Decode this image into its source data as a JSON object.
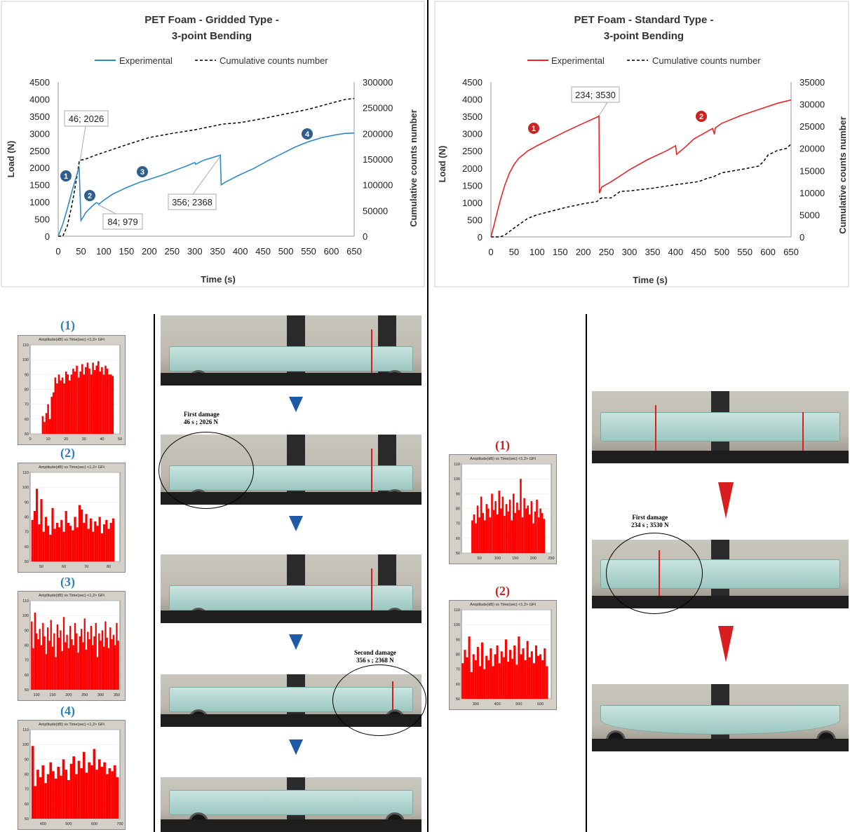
{
  "colors": {
    "gridded": "#2f8ac4",
    "standard": "#e8262a",
    "counts": "#000000",
    "histogram": "#ff0000",
    "marker_blue": "#2e5e8f",
    "marker_red": "#cc2222",
    "arrow_blue": "#1f5aa6",
    "arrow_red": "#d81e1e"
  },
  "left_chart": {
    "title_line1": "PET Foam - Gridded Type -",
    "title_line2": "3-point Bending",
    "legend_experimental": "Experimental",
    "legend_counts": "Cumulative counts number",
    "ylabel": "Load (N)",
    "y2label": "Cumulative counts number",
    "xlabel": "Time (s)",
    "yticks": [
      "0",
      "500",
      "1000",
      "1500",
      "2000",
      "2500",
      "3000",
      "3500",
      "4000",
      "4500"
    ],
    "y2ticks": [
      "0",
      "50000",
      "100000",
      "150000",
      "200000",
      "250000",
      "300000"
    ],
    "xticks": [
      "0",
      "50",
      "100",
      "150",
      "200",
      "250",
      "300",
      "350",
      "400",
      "450",
      "500",
      "550",
      "600",
      "650"
    ],
    "callouts": [
      "46; 2026",
      "84; 979",
      "356; 2368"
    ],
    "markers": [
      "1",
      "2",
      "3",
      "4"
    ]
  },
  "right_chart": {
    "title_line1": "PET Foam - Standard Type -",
    "title_line2": "3-point Bending",
    "legend_experimental": "Experimental",
    "legend_counts": "Cumulative counts number",
    "ylabel": "Load (N)",
    "y2label": "Cumulative counts number",
    "xlabel": "Time (s)",
    "yticks": [
      "0",
      "500",
      "1000",
      "1500",
      "2000",
      "2500",
      "3000",
      "3500",
      "4000",
      "4500"
    ],
    "y2ticks": [
      "0",
      "5000",
      "10000",
      "15000",
      "20000",
      "25000",
      "30000",
      "35000"
    ],
    "xticks": [
      "0",
      "50",
      "100",
      "150",
      "200",
      "250",
      "300",
      "350",
      "400",
      "450",
      "500",
      "550",
      "600",
      "650"
    ],
    "callouts": [
      "234; 3530"
    ],
    "markers": [
      "1",
      "2"
    ]
  },
  "chart_data": [
    {
      "type": "line",
      "title": "PET Foam - Gridded Type - 3-point Bending",
      "xlabel": "Time (s)",
      "ylabel": "Load (N)",
      "y2label": "Cumulative counts number",
      "xlim": [
        0,
        650
      ],
      "ylim": [
        0,
        4500
      ],
      "y2lim": [
        0,
        300000
      ],
      "legend": "top",
      "series": [
        {
          "name": "Experimental",
          "axis": "left",
          "x": [
            0,
            10,
            20,
            30,
            40,
            46,
            48,
            50,
            55,
            60,
            70,
            80,
            84,
            90,
            100,
            120,
            150,
            180,
            200,
            230,
            260,
            280,
            300,
            302,
            320,
            340,
            355,
            356,
            358,
            370,
            400,
            430,
            460,
            490,
            520,
            550,
            580,
            610,
            630,
            650
          ],
          "y": [
            0,
            350,
            800,
            1300,
            1750,
            2026,
            1200,
            460,
            560,
            680,
            820,
            940,
            979,
            940,
            1050,
            1230,
            1420,
            1580,
            1660,
            1790,
            1940,
            2040,
            2150,
            2100,
            2220,
            2300,
            2360,
            2368,
            1500,
            1600,
            1800,
            1980,
            2200,
            2400,
            2600,
            2760,
            2880,
            2960,
            3000,
            3010
          ]
        },
        {
          "name": "Cumulative counts number",
          "axis": "right",
          "style": "dashed",
          "x": [
            0,
            10,
            20,
            30,
            40,
            46,
            50,
            60,
            80,
            100,
            150,
            200,
            250,
            300,
            350,
            360,
            400,
            450,
            500,
            550,
            600,
            630,
            650
          ],
          "y": [
            0,
            0,
            20000,
            60000,
            110000,
            145000,
            148000,
            150000,
            157000,
            163000,
            178000,
            192000,
            200000,
            207000,
            216000,
            218000,
            221000,
            229000,
            238000,
            247000,
            259000,
            266000,
            268000
          ]
        }
      ],
      "annotations": [
        {
          "x": 46,
          "y": 2026,
          "label": "46; 2026"
        },
        {
          "x": 84,
          "y": 979,
          "label": "84; 979"
        },
        {
          "x": 356,
          "y": 2368,
          "label": "356; 2368"
        }
      ]
    },
    {
      "type": "line",
      "title": "PET Foam - Standard Type - 3-point Bending",
      "xlabel": "Time (s)",
      "ylabel": "Load (N)",
      "y2label": "Cumulative counts number",
      "xlim": [
        0,
        650
      ],
      "ylim": [
        0,
        4500
      ],
      "y2lim": [
        0,
        35000
      ],
      "legend": "top",
      "series": [
        {
          "name": "Experimental",
          "axis": "left",
          "x": [
            0,
            5,
            10,
            20,
            30,
            40,
            50,
            60,
            80,
            100,
            130,
            160,
            200,
            233,
            234,
            235,
            240,
            260,
            300,
            340,
            380,
            400,
            402,
            420,
            440,
            460,
            480,
            484,
            486,
            500,
            540,
            580,
            620,
            650
          ],
          "y": [
            0,
            250,
            520,
            1050,
            1500,
            1850,
            2100,
            2280,
            2500,
            2650,
            2850,
            3050,
            3300,
            3500,
            3530,
            1270,
            1450,
            1600,
            1950,
            2250,
            2500,
            2650,
            2400,
            2600,
            2850,
            3000,
            3150,
            2980,
            3170,
            3300,
            3520,
            3700,
            3880,
            3980
          ]
        },
        {
          "name": "Cumulative counts number",
          "axis": "right",
          "style": "dashed",
          "x": [
            0,
            20,
            30,
            50,
            80,
            100,
            130,
            160,
            200,
            230,
            234,
            240,
            260,
            270,
            280,
            300,
            350,
            400,
            450,
            470,
            480,
            500,
            540,
            580,
            590,
            600,
            620,
            640,
            650
          ],
          "y": [
            0,
            0,
            400,
            2000,
            4200,
            5000,
            5800,
            6600,
            7500,
            8000,
            8500,
            8800,
            8800,
            9500,
            10300,
            10400,
            11000,
            11800,
            12500,
            13300,
            13500,
            14500,
            15200,
            16000,
            17000,
            18500,
            19500,
            20000,
            21000
          ]
        }
      ],
      "annotations": [
        {
          "x": 234,
          "y": 3530,
          "label": "234; 3530"
        }
      ]
    },
    {
      "type": "bar",
      "title": "Amplitude(dB) vs Time(sec) <1,2> GFt",
      "xlim": [
        0,
        50
      ],
      "ylim": [
        50,
        110
      ],
      "x": [
        7,
        8,
        9,
        10,
        11,
        12,
        13,
        14,
        15,
        16,
        17,
        18,
        19,
        20,
        21,
        22,
        23,
        24,
        25,
        26,
        27,
        28,
        29,
        30,
        31,
        32,
        33,
        34,
        35,
        36,
        37,
        38,
        39,
        40,
        41,
        42,
        43,
        44,
        45,
        46
      ],
      "values": [
        62,
        58,
        64,
        70,
        60,
        75,
        78,
        88,
        84,
        90,
        86,
        88,
        84,
        92,
        90,
        86,
        90,
        94,
        92,
        96,
        88,
        92,
        97,
        90,
        95,
        98,
        94,
        90,
        98,
        93,
        96,
        99,
        92,
        95,
        90,
        96,
        94,
        90,
        90,
        89
      ]
    },
    {
      "type": "bar",
      "title": "Amplitude(dB) vs Time(sec) <1,2> GFt",
      "xlim": [
        45,
        85
      ],
      "ylim": [
        50,
        110
      ],
      "x": [
        46,
        47,
        48,
        49,
        50,
        51,
        52,
        53,
        54,
        55,
        56,
        57,
        58,
        59,
        60,
        61,
        62,
        63,
        64,
        65,
        66,
        67,
        68,
        69,
        70,
        71,
        72,
        73,
        74,
        75,
        76,
        77,
        78,
        79,
        80,
        81,
        82
      ],
      "values": [
        78,
        84,
        99,
        75,
        92,
        70,
        80,
        74,
        68,
        86,
        72,
        76,
        73,
        78,
        70,
        84,
        76,
        74,
        71,
        80,
        73,
        88,
        85,
        76,
        82,
        72,
        79,
        70,
        77,
        74,
        80,
        69,
        75,
        78,
        72,
        76,
        79
      ]
    },
    {
      "type": "bar",
      "title": "Amplitude(dB) vs Time(sec) <1,2> GFt",
      "xlim": [
        80,
        360
      ],
      "ylim": [
        50,
        110
      ],
      "x": [
        85,
        90,
        95,
        100,
        105,
        110,
        115,
        120,
        125,
        130,
        135,
        140,
        145,
        150,
        155,
        160,
        165,
        170,
        175,
        180,
        185,
        190,
        195,
        200,
        205,
        210,
        215,
        220,
        225,
        230,
        235,
        240,
        245,
        250,
        255,
        260,
        265,
        270,
        275,
        280,
        285,
        290,
        295,
        300,
        305,
        310,
        315,
        320,
        325,
        330,
        335,
        340,
        345,
        350,
        355
      ],
      "values": [
        96,
        78,
        102,
        88,
        84,
        91,
        80,
        95,
        86,
        74,
        92,
        83,
        97,
        79,
        88,
        72,
        94,
        85,
        90,
        76,
        99,
        82,
        87,
        78,
        93,
        84,
        80,
        95,
        88,
        75,
        86,
        91,
        82,
        98,
        77,
        89,
        84,
        93,
        80,
        86,
        95,
        72,
        88,
        83,
        90,
        79,
        96,
        85,
        78,
        92,
        84,
        87,
        80,
        95,
        83
      ]
    },
    {
      "type": "bar",
      "title": "Amplitude(dB) vs Time(sec) <1,2> GFt",
      "xlim": [
        350,
        700
      ],
      "ylim": [
        50,
        110
      ],
      "x": [
        360,
        370,
        380,
        390,
        400,
        410,
        420,
        430,
        440,
        450,
        460,
        470,
        480,
        490,
        500,
        510,
        520,
        530,
        540,
        550,
        560,
        570,
        580,
        590,
        600,
        610,
        620,
        630,
        640,
        650,
        660,
        670,
        680,
        690
      ],
      "values": [
        99,
        72,
        83,
        78,
        86,
        74,
        80,
        88,
        82,
        77,
        85,
        79,
        90,
        83,
        76,
        87,
        92,
        80,
        89,
        84,
        95,
        81,
        88,
        86,
        97,
        83,
        90,
        85,
        88,
        80,
        84,
        82,
        86,
        78
      ]
    },
    {
      "type": "bar",
      "title": "Amplitude(dB) vs Time(sec) <1,2> GFt",
      "xlim": [
        0,
        250
      ],
      "ylim": [
        50,
        110
      ],
      "x": [
        30,
        35,
        40,
        45,
        50,
        55,
        60,
        65,
        70,
        75,
        80,
        85,
        90,
        95,
        100,
        105,
        110,
        115,
        120,
        125,
        130,
        135,
        140,
        145,
        150,
        155,
        160,
        165,
        170,
        175,
        180,
        185,
        190,
        195,
        200,
        205,
        210,
        215,
        220,
        225,
        230
      ],
      "values": [
        72,
        76,
        70,
        82,
        74,
        88,
        77,
        72,
        83,
        80,
        74,
        90,
        79,
        85,
        76,
        92,
        80,
        88,
        75,
        83,
        78,
        86,
        72,
        90,
        77,
        84,
        79,
        100,
        74,
        87,
        80,
        82,
        76,
        85,
        70,
        78,
        86,
        74,
        80,
        77,
        73
      ]
    },
    {
      "type": "bar",
      "title": "Amplitude(dB) vs Time(sec) <1,2> GFt",
      "xlim": [
        234,
        650
      ],
      "ylim": [
        50,
        110
      ],
      "x": [
        240,
        250,
        260,
        270,
        280,
        290,
        300,
        310,
        320,
        330,
        340,
        350,
        360,
        370,
        380,
        390,
        400,
        410,
        420,
        430,
        440,
        450,
        460,
        470,
        480,
        490,
        500,
        510,
        520,
        530,
        540,
        550,
        560,
        570,
        580,
        590,
        600,
        610,
        620,
        630
      ],
      "values": [
        74,
        83,
        78,
        92,
        68,
        80,
        76,
        85,
        72,
        88,
        70,
        79,
        76,
        84,
        72,
        80,
        86,
        74,
        82,
        78,
        90,
        75,
        83,
        77,
        86,
        73,
        92,
        80,
        84,
        76,
        89,
        78,
        82,
        74,
        86,
        79,
        80,
        76,
        84,
        72
      ]
    }
  ],
  "histograms": {
    "title": "Amplitude(dB) vs Time(sec) <1,2> GFt",
    "left_labels": [
      "(1)",
      "(2)",
      "(3)",
      "(4)"
    ],
    "right_labels": [
      "(1)",
      "(2)"
    ],
    "h1_xticks": [
      "0",
      "10",
      "20",
      "30",
      "40",
      "50"
    ],
    "h2_xticks": [
      "50",
      "60",
      "70",
      "80"
    ],
    "h3_xticks": [
      "100",
      "150",
      "200",
      "250",
      "300",
      "350"
    ],
    "h4_xticks": [
      "400",
      "500",
      "600",
      "700"
    ],
    "r1_xticks": [
      "50",
      "100",
      "150",
      "200",
      "250"
    ],
    "r2_xticks": [
      "300",
      "400",
      "500",
      "600"
    ],
    "yticks": [
      "50",
      "60",
      "70",
      "80",
      "90",
      "100",
      "110"
    ]
  },
  "photos": {
    "left_first_damage_line1": "First damage",
    "left_first_damage_line2": "46 s ; 2026 N",
    "left_second_damage_line1": "Second damage",
    "left_second_damage_line2": "356 s ; 2368 N",
    "right_first_damage_line1": "First damage",
    "right_first_damage_line2": "234 s ; 3530 N"
  }
}
